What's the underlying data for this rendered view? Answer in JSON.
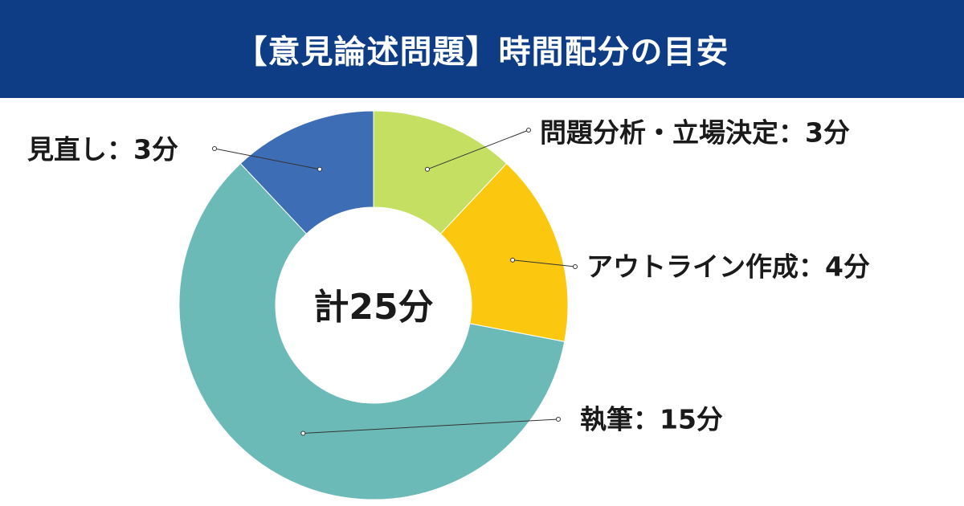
{
  "header": {
    "title": "【意見論述問題】時間配分の目安"
  },
  "chart_data": {
    "type": "pie",
    "title": "【意見論述問題】時間配分の目安",
    "center_label": "計25分",
    "unit": "分",
    "slices": [
      {
        "label": "問題分析・立場決定：3分",
        "value": 3,
        "color": "#c5df63"
      },
      {
        "label": "アウトライン作成：4分",
        "value": 4,
        "color": "#fcc70f"
      },
      {
        "label": "執筆：15分",
        "value": 15,
        "color": "#6bbab8"
      },
      {
        "label": "見直し：3分",
        "value": 3,
        "color": "#3d6db5"
      }
    ]
  }
}
